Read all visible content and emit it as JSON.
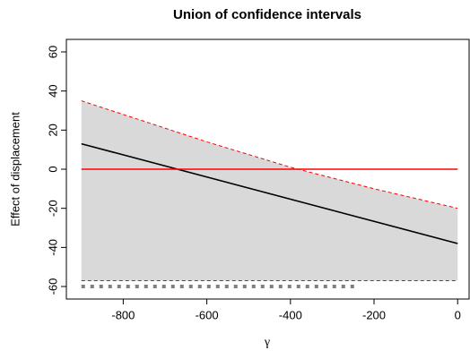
{
  "chart_data": {
    "type": "line",
    "title": "Union of confidence intervals",
    "xlabel": "γ",
    "ylabel": "Effect of displacement",
    "xlim": [
      -936,
      36
    ],
    "ylim": [
      -66.4,
      66.4
    ],
    "xticks": [
      -800,
      -600,
      -400,
      -200,
      0
    ],
    "yticks": [
      -60,
      -40,
      -20,
      0,
      20,
      40,
      60
    ],
    "band_color": "#d9d9d9",
    "series": [
      {
        "color": "#ff0000",
        "dash": "dashed",
        "x": [
          -900,
          -600,
          -400,
          -200,
          0
        ],
        "values": [
          35,
          14,
          1,
          -10,
          -20
        ]
      },
      {
        "color": "#ff0000",
        "dash": "dashed",
        "x": [
          -900,
          0
        ],
        "values": [
          -57,
          -57
        ]
      },
      {
        "color": "#000000",
        "dash": "solid",
        "x": [
          -900,
          0
        ],
        "values": [
          13,
          -38
        ]
      },
      {
        "color": "#ff0000",
        "dash": "solid",
        "x": [
          -900,
          0
        ],
        "values": [
          0,
          0
        ]
      },
      {
        "color": "#808080",
        "dash": "dotted",
        "x": [
          -900,
          -236
        ],
        "values": [
          -60,
          -60
        ]
      }
    ]
  }
}
